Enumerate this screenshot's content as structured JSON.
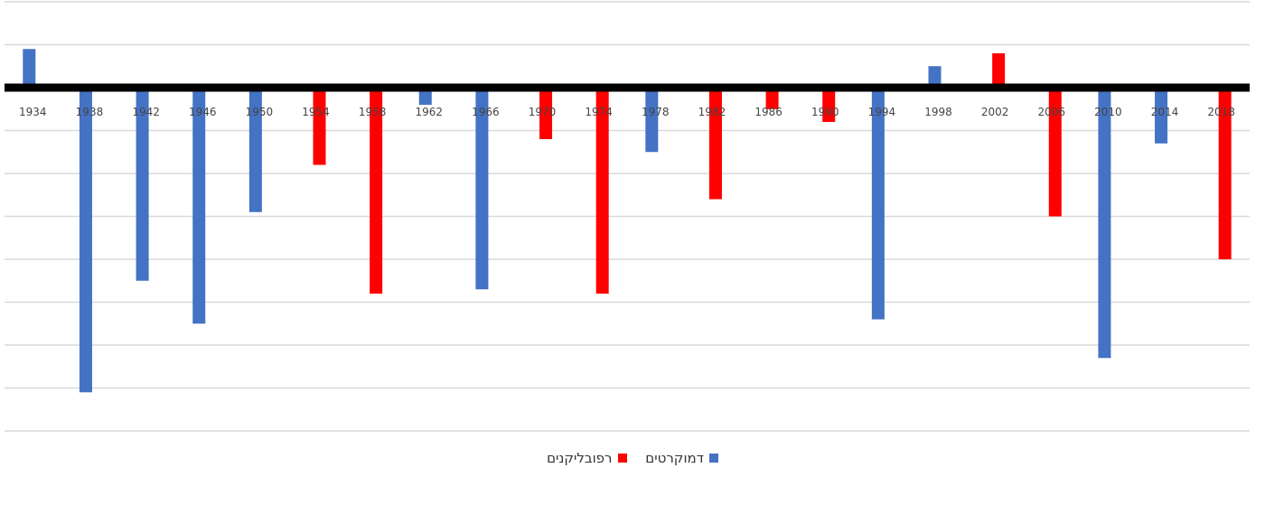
{
  "chart_data": {
    "type": "bar",
    "categories": [
      "1934",
      "1938",
      "1942",
      "1946",
      "1950",
      "1954",
      "1958",
      "1962",
      "1966",
      "1970",
      "1974",
      "1978",
      "1982",
      "1986",
      "1990",
      "1994",
      "1998",
      "2002",
      "2006",
      "2010",
      "2014",
      "2018"
    ],
    "series": [
      {
        "name": "דמוקרטים",
        "color": "#4472C4",
        "values": [
          9,
          -71,
          -45,
          -55,
          -29,
          0,
          0,
          -4,
          -47,
          0,
          0,
          -15,
          0,
          0,
          0,
          -54,
          5,
          0,
          0,
          -63,
          -13,
          0
        ]
      },
      {
        "name": "רפובליקנים",
        "color": "#FF0000",
        "values": [
          0,
          0,
          0,
          0,
          0,
          -18,
          -48,
          0,
          0,
          -12,
          -48,
          0,
          -26,
          -5,
          -8,
          0,
          0,
          8,
          -30,
          0,
          0,
          -40
        ]
      }
    ],
    "ylim": [
      -80,
      20
    ],
    "grid": true,
    "legend_position": "bottom"
  }
}
